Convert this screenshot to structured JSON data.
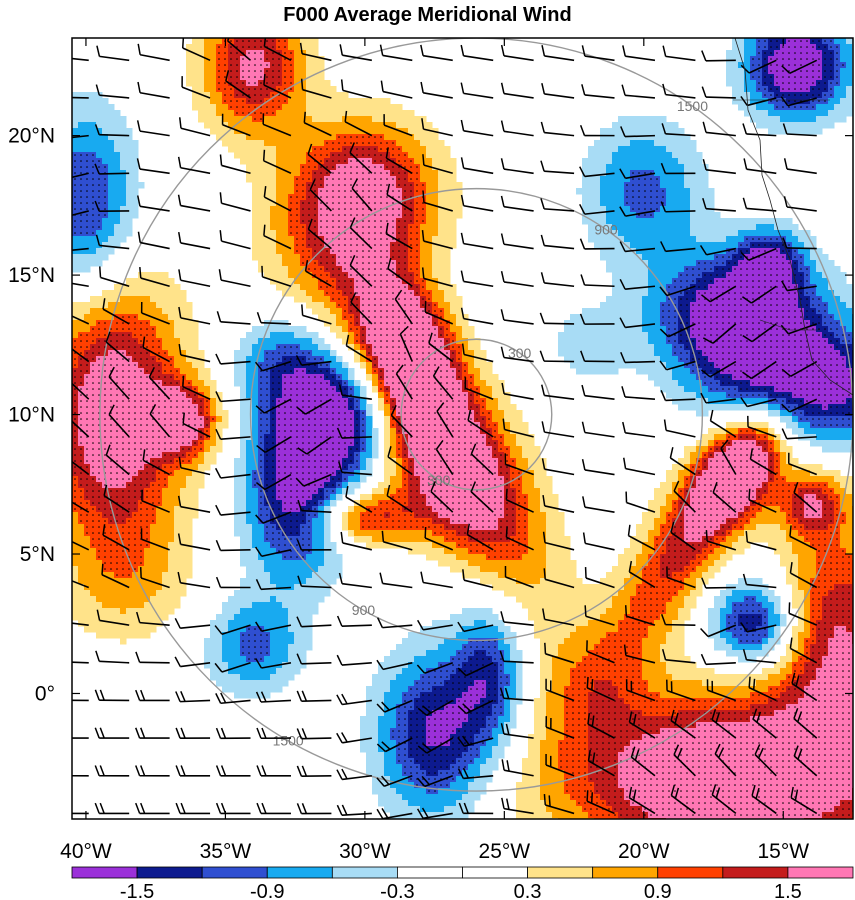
{
  "title": "F000 Average Meridional Wind",
  "map": {
    "lon_range": [
      -40.5,
      -12.5
    ],
    "lat_range": [
      -4.5,
      23.5
    ],
    "x_ticks": [
      {
        "value": -40,
        "label": "40°W"
      },
      {
        "value": -35,
        "label": "35°W"
      },
      {
        "value": -30,
        "label": "30°W"
      },
      {
        "value": -25,
        "label": "25°W"
      },
      {
        "value": -20,
        "label": "20°W"
      },
      {
        "value": -15,
        "label": "15°W"
      }
    ],
    "y_ticks": [
      {
        "value": 0,
        "label": "0°"
      },
      {
        "value": 5,
        "label": "5°N"
      },
      {
        "value": 10,
        "label": "10°N"
      },
      {
        "value": 15,
        "label": "15°N"
      },
      {
        "value": 20,
        "label": "20°N"
      }
    ],
    "range_rings": {
      "center": [
        -26.0,
        10.0
      ],
      "rings": [
        {
          "radius_deg": 2.7,
          "label": "300"
        },
        {
          "radius_deg": 8.1,
          "label": "900"
        },
        {
          "radius_deg": 13.5,
          "label": "1500"
        }
      ],
      "color": "#999999"
    },
    "stipple_note": "dots over shaded areas with |v| >= 0.9"
  },
  "colorbar": {
    "colors": [
      "#9b30d9",
      "#0d1a8f",
      "#2f4fd1",
      "#18aaf0",
      "#a8dcf5",
      "#ffffff",
      "#ffffff",
      "#ffe38a",
      "#ffa500",
      "#ff4000",
      "#c41c1c",
      "#ff77b4"
    ],
    "labels": [
      {
        "index": 1,
        "text": "-1.5"
      },
      {
        "index": 3,
        "text": "-0.9"
      },
      {
        "index": 5,
        "text": "-0.3"
      },
      {
        "index": 7,
        "text": "0.3"
      },
      {
        "index": 9,
        "text": "0.9"
      },
      {
        "index": 11,
        "text": "1.5"
      }
    ]
  },
  "field_blobs": [
    {
      "lon": -27.0,
      "lat": 8.5,
      "r": 2.4,
      "amp": 2.5,
      "sx": 0.6,
      "sy": 1.5,
      "rot": 30
    },
    {
      "lon": -28.5,
      "lat": 12.5,
      "r": 1.5,
      "amp": 1.8,
      "sx": 0.7,
      "sy": 1.2,
      "rot": 20
    },
    {
      "lon": -30.0,
      "lat": 6.3,
      "r": 1.0,
      "amp": 1.3,
      "sx": 1.3,
      "sy": 0.7,
      "rot": 0
    },
    {
      "lon": -30.0,
      "lat": 18.0,
      "r": 1.8,
      "amp": 1.6,
      "sx": 1.0,
      "sy": 1.0,
      "rot": 0
    },
    {
      "lon": -31.0,
      "lat": 16.0,
      "r": 2.0,
      "amp": 0.7,
      "sx": 1.0,
      "sy": 1.0,
      "rot": 0
    },
    {
      "lon": -34.0,
      "lat": 22.5,
      "r": 1.3,
      "amp": 1.6,
      "sx": 1.0,
      "sy": 1.3,
      "rot": 0
    },
    {
      "lon": -39.0,
      "lat": 10.0,
      "r": 2.2,
      "amp": 2.0,
      "sx": 0.8,
      "sy": 1.5,
      "rot": 0
    },
    {
      "lon": -36.5,
      "lat": 9.8,
      "r": 0.9,
      "amp": 1.5,
      "sx": 1.0,
      "sy": 1.0,
      "rot": 0
    },
    {
      "lon": -38.5,
      "lat": 4.0,
      "r": 1.6,
      "amp": 0.5,
      "sx": 1.0,
      "sy": 1.0,
      "rot": 0
    },
    {
      "lon": -18.5,
      "lat": 5.5,
      "r": 2.0,
      "amp": 1.3,
      "sx": 0.5,
      "sy": 1.8,
      "rot": -30
    },
    {
      "lon": -16.5,
      "lat": 8.0,
      "r": 1.3,
      "amp": 1.8,
      "sx": 0.7,
      "sy": 1.2,
      "rot": -35
    },
    {
      "lon": -14.0,
      "lat": 6.8,
      "r": 0.8,
      "amp": 1.3,
      "sx": 1.0,
      "sy": 1.0,
      "rot": 0
    },
    {
      "lon": -13.0,
      "lat": 2.0,
      "r": 2.0,
      "amp": 1.5,
      "sx": 0.8,
      "sy": 1.5,
      "rot": 0
    },
    {
      "lon": -17.0,
      "lat": -3.0,
      "r": 3.0,
      "amp": 2.3,
      "sx": 1.4,
      "sy": 0.7,
      "rot": 0
    },
    {
      "lon": -22.0,
      "lat": 0.5,
      "r": 1.5,
      "amp": 0.5,
      "sx": 1.0,
      "sy": 1.0,
      "rot": 0
    },
    {
      "lon": -16.5,
      "lat": 13.5,
      "r": 1.7,
      "amp": -2.2,
      "sx": 1.2,
      "sy": 0.9,
      "rot": 0
    },
    {
      "lon": -14.0,
      "lat": 11.0,
      "r": 1.8,
      "amp": -1.8,
      "sx": 1.3,
      "sy": 0.8,
      "rot": 0
    },
    {
      "lon": -15.5,
      "lat": 15.5,
      "r": 0.8,
      "amp": -1.3,
      "sx": 1.0,
      "sy": 1.0,
      "rot": 0
    },
    {
      "lon": -20.0,
      "lat": 18.0,
      "r": 1.5,
      "amp": -1.0,
      "sx": 1.0,
      "sy": 1.2,
      "rot": 0
    },
    {
      "lon": -14.5,
      "lat": 22.5,
      "r": 1.3,
      "amp": -2.0,
      "sx": 1.0,
      "sy": 1.0,
      "rot": 0
    },
    {
      "lon": -31.0,
      "lat": 10.0,
      "r": 1.6,
      "amp": -2.0,
      "sx": 1.0,
      "sy": 1.0,
      "rot": 0
    },
    {
      "lon": -32.5,
      "lat": 7.0,
      "r": 1.6,
      "amp": -1.6,
      "sx": 0.8,
      "sy": 1.3,
      "rot": 0
    },
    {
      "lon": -33.0,
      "lat": 12.0,
      "r": 1.2,
      "amp": -0.8,
      "sx": 1.0,
      "sy": 1.0,
      "rot": 0
    },
    {
      "lon": -40.0,
      "lat": 17.5,
      "r": 1.6,
      "amp": -1.3,
      "sx": 0.8,
      "sy": 1.5,
      "rot": 0
    },
    {
      "lon": -16.0,
      "lat": 2.5,
      "r": 1.1,
      "amp": -1.6,
      "sx": 1.0,
      "sy": 1.0,
      "rot": 0
    },
    {
      "lon": -34.0,
      "lat": 1.7,
      "r": 1.2,
      "amp": -1.0,
      "sx": 1.0,
      "sy": 1.0,
      "rot": 0
    },
    {
      "lon": -27.5,
      "lat": -1.5,
      "r": 1.6,
      "amp": -1.6,
      "sx": 0.9,
      "sy": 1.3,
      "rot": 0
    },
    {
      "lon": -25.5,
      "lat": 0.8,
      "r": 1.3,
      "amp": -1.2,
      "sx": 0.7,
      "sy": 1.4,
      "rot": 0
    },
    {
      "lon": -22.0,
      "lat": 12.5,
      "r": 1.0,
      "amp": -0.5,
      "sx": 1.0,
      "sy": 1.0,
      "rot": 0
    },
    {
      "lon": -26.0,
      "lat": 5.0,
      "r": 1.5,
      "amp": -0.3,
      "sx": 1.0,
      "sy": 1.0,
      "rot": 0
    }
  ]
}
